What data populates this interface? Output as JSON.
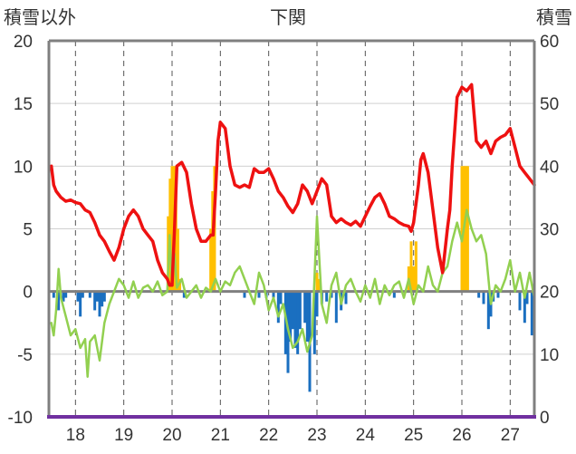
{
  "chart_data": {
    "type": "line",
    "title": "下関",
    "ylabel_left": "積雪以外",
    "ylabel_right": "積雪",
    "categories": [
      "18",
      "19",
      "20",
      "21",
      "22",
      "23",
      "24",
      "25",
      "26",
      "27"
    ],
    "ylim_left": [
      -10,
      20
    ],
    "yticks_left": [
      "20",
      "15",
      "10",
      "5",
      "0",
      "-5",
      "-10"
    ],
    "ylim_right": [
      0,
      60
    ],
    "yticks_right": [
      "60",
      "50",
      "40",
      "30",
      "20",
      "10",
      "0"
    ],
    "xlim": [
      17.45,
      27.5
    ],
    "vertical_gridlines_dashed": true,
    "colors": {
      "red_line": "#ee1111",
      "green_line": "#92d050",
      "blue_bars": "#1a6fc0",
      "orange_bars": "#ffc000",
      "baseline": "#7f7f7f",
      "bottom_axis": "#7030a0",
      "frame": "#7f7f7f"
    },
    "series": [
      {
        "kind": "line",
        "color_key": "red_line",
        "axis": "left",
        "x": [
          17.5,
          17.55,
          17.6,
          17.7,
          17.8,
          17.9,
          18.0,
          18.1,
          18.2,
          18.3,
          18.4,
          18.5,
          18.6,
          18.7,
          18.8,
          18.9,
          19.0,
          19.1,
          19.2,
          19.3,
          19.4,
          19.5,
          19.6,
          19.7,
          19.8,
          19.9,
          19.95,
          20.0,
          20.05,
          20.1,
          20.2,
          20.3,
          20.4,
          20.5,
          20.6,
          20.7,
          20.8,
          20.85,
          20.9,
          20.95,
          21.0,
          21.1,
          21.2,
          21.3,
          21.4,
          21.5,
          21.6,
          21.7,
          21.8,
          21.9,
          22.0,
          22.1,
          22.2,
          22.3,
          22.4,
          22.5,
          22.6,
          22.7,
          22.8,
          22.9,
          23.0,
          23.1,
          23.2,
          23.3,
          23.4,
          23.5,
          23.6,
          23.7,
          23.8,
          23.9,
          24.0,
          24.1,
          24.2,
          24.3,
          24.4,
          24.5,
          24.6,
          24.7,
          24.8,
          24.9,
          24.95,
          25.0,
          25.1,
          25.15,
          25.2,
          25.3,
          25.4,
          25.5,
          25.6,
          25.7,
          25.75,
          25.8,
          25.9,
          26.0,
          26.1,
          26.2,
          26.3,
          26.4,
          26.5,
          26.6,
          26.7,
          26.8,
          26.9,
          27.0,
          27.1,
          27.2,
          27.3,
          27.4,
          27.5
        ],
        "y": [
          10,
          8.5,
          8,
          7.5,
          7.2,
          7.3,
          7.1,
          7.0,
          6.5,
          6.3,
          5.5,
          4.5,
          4.0,
          3.2,
          2.5,
          3.5,
          5.0,
          6.0,
          6.5,
          6.0,
          5.0,
          4.5,
          4.0,
          2.5,
          1.5,
          1.0,
          0.5,
          0.5,
          5.0,
          10.0,
          10.3,
          9.5,
          7.0,
          5.0,
          4.0,
          4.0,
          4.5,
          4.5,
          8.0,
          12.0,
          13.5,
          13.0,
          10.0,
          8.5,
          8.3,
          8.5,
          8.3,
          9.8,
          9.5,
          9.5,
          9.8,
          9.0,
          8.0,
          7.5,
          6.8,
          6.3,
          7.0,
          8.5,
          8.0,
          7.0,
          8.0,
          9.0,
          8.5,
          6.0,
          5.5,
          5.8,
          5.5,
          5.3,
          5.6,
          5.2,
          6.0,
          6.8,
          7.5,
          7.8,
          7.0,
          6.0,
          5.8,
          5.5,
          5.3,
          5.2,
          4.8,
          5.5,
          8.5,
          10.5,
          11.0,
          9.5,
          6.5,
          3.5,
          1.5,
          5.0,
          6.5,
          10.0,
          15.5,
          16.3,
          16.0,
          16.5,
          12.0,
          11.5,
          12.0,
          11.0,
          12.0,
          12.3,
          12.5,
          13.0,
          11.5,
          10.0,
          9.5,
          9.0,
          8.5
        ]
      },
      {
        "kind": "line",
        "color_key": "green_line",
        "axis": "left",
        "x": [
          17.5,
          17.55,
          17.6,
          17.65,
          17.7,
          17.8,
          17.9,
          18.0,
          18.1,
          18.2,
          18.25,
          18.3,
          18.4,
          18.5,
          18.6,
          18.7,
          18.8,
          18.9,
          19.0,
          19.1,
          19.2,
          19.3,
          19.4,
          19.5,
          19.6,
          19.7,
          19.8,
          19.9,
          19.95,
          20.0,
          20.05,
          20.1,
          20.2,
          20.3,
          20.4,
          20.5,
          20.6,
          20.7,
          20.8,
          20.9,
          21.0,
          21.1,
          21.2,
          21.3,
          21.4,
          21.5,
          21.6,
          21.7,
          21.8,
          21.9,
          22.0,
          22.1,
          22.2,
          22.3,
          22.4,
          22.5,
          22.6,
          22.7,
          22.8,
          22.9,
          23.0,
          23.1,
          23.2,
          23.3,
          23.4,
          23.5,
          23.6,
          23.7,
          23.8,
          23.9,
          24.0,
          24.1,
          24.2,
          24.3,
          24.4,
          24.5,
          24.6,
          24.7,
          24.8,
          24.9,
          25.0,
          25.1,
          25.2,
          25.3,
          25.4,
          25.5,
          25.6,
          25.7,
          25.8,
          25.9,
          26.0,
          26.1,
          26.2,
          26.3,
          26.4,
          26.5,
          26.6,
          26.7,
          26.8,
          26.9,
          27.0,
          27.1,
          27.2,
          27.3,
          27.4,
          27.5
        ],
        "y": [
          -2.5,
          -3.5,
          -1.5,
          1.8,
          -0.5,
          -2.0,
          -3.5,
          -3.0,
          -4.5,
          -3.8,
          -6.8,
          -4.0,
          -3.5,
          -5.5,
          -2.5,
          -1.0,
          0.0,
          1.0,
          0.5,
          -0.5,
          0.8,
          -0.5,
          0.3,
          0.5,
          0.0,
          0.8,
          -0.3,
          0.0,
          4.5,
          0.5,
          3.0,
          0.3,
          1.0,
          -0.5,
          0.0,
          0.5,
          -0.5,
          0.3,
          0.0,
          1.0,
          0.0,
          0.8,
          0.5,
          1.5,
          2.0,
          1.0,
          0.0,
          -1.0,
          1.5,
          0.5,
          -1.5,
          -0.5,
          -2.0,
          -1.0,
          -3.0,
          -4.5,
          -4.0,
          -3.0,
          -4.8,
          -3.5,
          6.0,
          -1.0,
          -2.5,
          0.5,
          1.5,
          -1.0,
          0.5,
          1.0,
          0.0,
          -0.8,
          0.5,
          -0.5,
          1.0,
          -1.0,
          0.5,
          -0.3,
          0.5,
          0.8,
          -0.5,
          1.0,
          -1.0,
          0.5,
          0.0,
          2.0,
          0.5,
          0.0,
          1.5,
          2.0,
          4.0,
          5.5,
          4.0,
          6.5,
          5.0,
          4.0,
          4.5,
          3.0,
          -1.0,
          0.5,
          0.0,
          1.0,
          2.5,
          0.0,
          1.5,
          -0.5,
          1.5,
          -0.5
        ]
      },
      {
        "kind": "bars",
        "color_key": "blue_bars",
        "axis": "left",
        "x": [
          17.55,
          17.65,
          17.75,
          17.8,
          18.05,
          18.1,
          18.15,
          18.3,
          18.4,
          18.45,
          18.5,
          18.55,
          18.6,
          20.25,
          21.5,
          21.8,
          21.95,
          22.1,
          22.2,
          22.25,
          22.35,
          22.4,
          22.45,
          22.5,
          22.55,
          22.6,
          22.65,
          22.75,
          22.8,
          22.85,
          22.95,
          23.0,
          23.1,
          23.2,
          23.3,
          23.4,
          23.5,
          23.6,
          24.6,
          26.35,
          26.45,
          26.55,
          26.6,
          26.65,
          26.75,
          27.2,
          27.3,
          27.35,
          27.45
        ],
        "y": [
          -0.5,
          -1.5,
          -0.8,
          -0.5,
          -0.8,
          -2.0,
          -0.5,
          -0.5,
          -1.5,
          -0.8,
          -2.0,
          -1.2,
          -0.8,
          -0.5,
          -0.5,
          -0.5,
          -0.5,
          -0.5,
          -2.5,
          -1.0,
          -5.0,
          -6.5,
          -4.0,
          -3.0,
          -4.5,
          -5.0,
          -3.0,
          -2.5,
          -4.0,
          -8.0,
          -5.0,
          -2.0,
          -1.0,
          -0.8,
          -0.5,
          -2.5,
          -1.5,
          -1.0,
          -0.5,
          -0.5,
          -1.0,
          -3.0,
          -2.0,
          -0.8,
          -0.5,
          -1.5,
          -2.5,
          -1.0,
          -3.5
        ]
      },
      {
        "kind": "bars",
        "color_key": "orange_bars",
        "axis": "right",
        "x": [
          19.92,
          19.96,
          20.0,
          20.04,
          20.08,
          20.12,
          20.16,
          20.8,
          20.84,
          20.88,
          23.0,
          23.05,
          24.9,
          24.95,
          25.0,
          25.05,
          26.0,
          26.03,
          26.06,
          26.09,
          26.12
        ],
        "y": [
          32,
          38,
          40,
          40,
          40,
          30,
          22,
          30,
          36,
          40,
          23,
          22,
          24,
          28,
          24,
          28,
          40,
          40,
          40,
          40,
          40
        ]
      }
    ]
  }
}
